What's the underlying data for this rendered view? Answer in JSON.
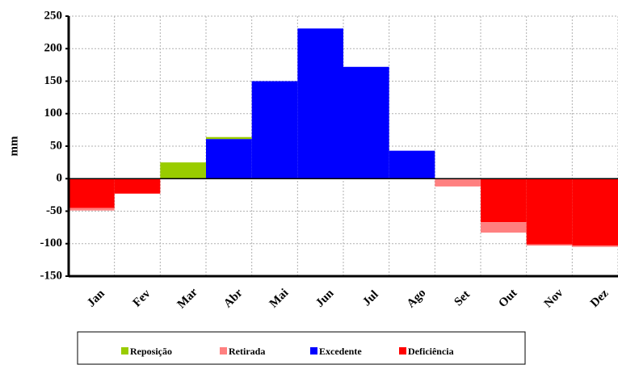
{
  "chart_data": {
    "type": "bar",
    "stacked": true,
    "y_label": "mm",
    "categories": [
      "Jan",
      "Fev",
      "Mar",
      "Abr",
      "Mai",
      "Jun",
      "Jul",
      "Ago",
      "Set",
      "Out",
      "Nov",
      "Dez"
    ],
    "series": [
      {
        "name": "Reposição",
        "color": "#99cc00",
        "values": [
          0,
          0,
          25,
          3,
          0,
          0,
          0,
          0,
          0,
          0,
          0,
          0
        ]
      },
      {
        "name": "Retirada",
        "color": "#ff8080",
        "values": [
          -4,
          0,
          0,
          0,
          0,
          0,
          0,
          0,
          -12,
          -16,
          -2,
          -2
        ]
      },
      {
        "name": "Excedente",
        "color": "#0000ff",
        "values": [
          0,
          0,
          0,
          61,
          150,
          231,
          172,
          43,
          0,
          0,
          0,
          0
        ]
      },
      {
        "name": "Deficiência",
        "color": "#ff0000",
        "values": [
          -45,
          -23,
          0,
          0,
          0,
          0,
          0,
          0,
          0,
          -67,
          -101,
          -103
        ]
      }
    ],
    "ylim": [
      -150,
      250
    ],
    "yticks": [
      -150,
      -100,
      -50,
      0,
      50,
      100,
      150,
      200,
      250
    ],
    "grid": true
  }
}
